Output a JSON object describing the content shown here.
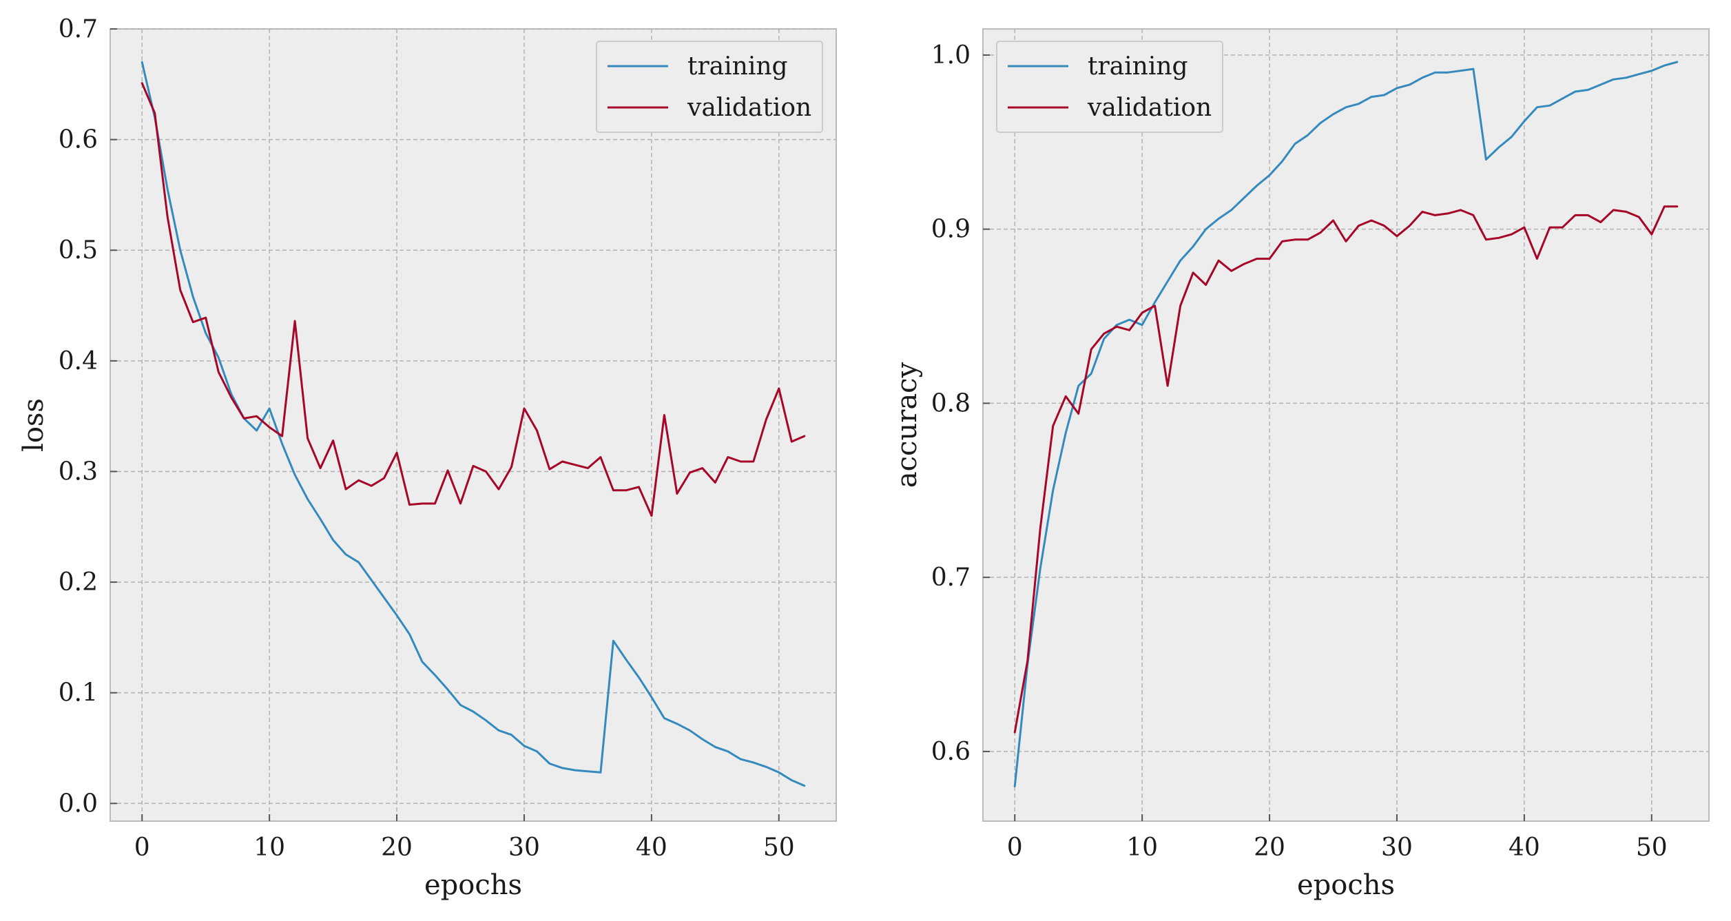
{
  "chart_data": [
    {
      "type": "line",
      "xlabel": "epochs",
      "ylabel": "loss",
      "xlim": [
        -2.5,
        54.5
      ],
      "ylim": [
        -0.016,
        0.7
      ],
      "xticks": [
        0,
        10,
        20,
        30,
        40,
        50
      ],
      "xtick_labels": [
        "0",
        "10",
        "20",
        "30",
        "40",
        "50"
      ],
      "yticks": [
        0.0,
        0.1,
        0.2,
        0.3,
        0.4,
        0.5,
        0.6,
        0.7
      ],
      "ytick_labels": [
        "0.0",
        "0.1",
        "0.2",
        "0.3",
        "0.4",
        "0.5",
        "0.6",
        "0.7"
      ],
      "grid": true,
      "legend": "top-right",
      "series": [
        {
          "name": "training",
          "color": "#348ABD",
          "values": [
            0.67,
            0.62,
            0.555,
            0.5,
            0.458,
            0.425,
            0.403,
            0.37,
            0.348,
            0.337,
            0.357,
            0.325,
            0.297,
            0.275,
            0.257,
            0.238,
            0.225,
            0.218,
            0.202,
            0.186,
            0.17,
            0.153,
            0.128,
            0.116,
            0.103,
            0.089,
            0.083,
            0.075,
            0.066,
            0.062,
            0.052,
            0.047,
            0.036,
            0.032,
            0.03,
            0.029,
            0.028,
            0.147,
            0.13,
            0.114,
            0.096,
            0.077,
            0.072,
            0.066,
            0.058,
            0.051,
            0.047,
            0.04,
            0.037,
            0.033,
            0.028,
            0.021,
            0.016
          ]
        },
        {
          "name": "validation",
          "color": "#A60628",
          "values": [
            0.651,
            0.624,
            0.53,
            0.464,
            0.435,
            0.439,
            0.39,
            0.367,
            0.348,
            0.35,
            0.34,
            0.332,
            0.436,
            0.33,
            0.303,
            0.328,
            0.284,
            0.292,
            0.287,
            0.294,
            0.317,
            0.27,
            0.271,
            0.271,
            0.301,
            0.271,
            0.305,
            0.3,
            0.284,
            0.304,
            0.357,
            0.337,
            0.302,
            0.309,
            0.306,
            0.303,
            0.313,
            0.283,
            0.283,
            0.286,
            0.26,
            0.351,
            0.28,
            0.299,
            0.303,
            0.29,
            0.313,
            0.309,
            0.309,
            0.347,
            0.375,
            0.327,
            0.332
          ]
        }
      ]
    },
    {
      "type": "line",
      "xlabel": "epochs",
      "ylabel": "accuracy",
      "xlim": [
        -2.5,
        54.5
      ],
      "ylim": [
        0.56,
        1.015
      ],
      "xticks": [
        0,
        10,
        20,
        30,
        40,
        50
      ],
      "xtick_labels": [
        "0",
        "10",
        "20",
        "30",
        "40",
        "50"
      ],
      "yticks": [
        0.6,
        0.7,
        0.8,
        0.9,
        1.0
      ],
      "ytick_labels": [
        "0.6",
        "0.7",
        "0.8",
        "0.9",
        "1.0"
      ],
      "grid": true,
      "legend": "top-left",
      "series": [
        {
          "name": "training",
          "color": "#348ABD",
          "values": [
            0.58,
            0.65,
            0.705,
            0.75,
            0.783,
            0.81,
            0.817,
            0.837,
            0.845,
            0.848,
            0.845,
            0.858,
            0.87,
            0.882,
            0.89,
            0.9,
            0.906,
            0.911,
            0.918,
            0.925,
            0.931,
            0.939,
            0.949,
            0.954,
            0.961,
            0.966,
            0.97,
            0.972,
            0.976,
            0.977,
            0.981,
            0.983,
            0.987,
            0.99,
            0.99,
            0.991,
            0.992,
            0.94,
            0.947,
            0.953,
            0.962,
            0.97,
            0.971,
            0.975,
            0.979,
            0.98,
            0.983,
            0.986,
            0.987,
            0.989,
            0.991,
            0.994,
            0.996
          ]
        },
        {
          "name": "validation",
          "color": "#A60628",
          "values": [
            0.611,
            0.652,
            0.728,
            0.787,
            0.804,
            0.794,
            0.831,
            0.84,
            0.844,
            0.842,
            0.852,
            0.856,
            0.81,
            0.856,
            0.875,
            0.868,
            0.882,
            0.876,
            0.88,
            0.883,
            0.883,
            0.893,
            0.894,
            0.894,
            0.898,
            0.905,
            0.893,
            0.902,
            0.905,
            0.902,
            0.896,
            0.902,
            0.91,
            0.908,
            0.909,
            0.911,
            0.908,
            0.894,
            0.895,
            0.897,
            0.901,
            0.883,
            0.901,
            0.901,
            0.908,
            0.908,
            0.904,
            0.911,
            0.91,
            0.907,
            0.897,
            0.913,
            0.913
          ]
        }
      ]
    }
  ]
}
